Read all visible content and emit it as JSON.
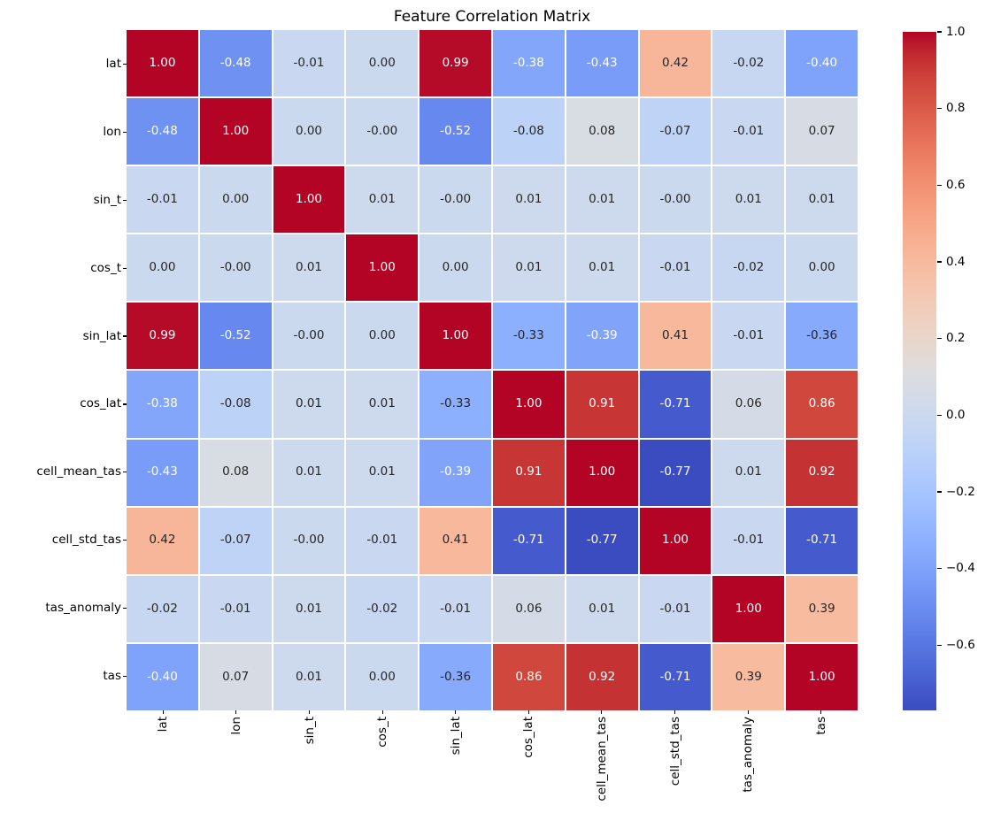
{
  "title": "Feature Correlation Matrix",
  "chart_data": {
    "type": "heatmap",
    "title": "Feature Correlation Matrix",
    "labels": [
      "lat",
      "lon",
      "sin_t",
      "cos_t",
      "sin_lat",
      "cos_lat",
      "cell_mean_tas",
      "cell_std_tas",
      "tas_anomaly",
      "tas"
    ],
    "matrix": [
      [
        "1.00",
        "-0.48",
        "-0.01",
        "0.00",
        "0.99",
        "-0.38",
        "-0.43",
        "0.42",
        "-0.02",
        "-0.40"
      ],
      [
        "-0.48",
        "1.00",
        "0.00",
        "-0.00",
        "-0.52",
        "-0.08",
        "0.08",
        "-0.07",
        "-0.01",
        "0.07"
      ],
      [
        "-0.01",
        "0.00",
        "1.00",
        "0.01",
        "-0.00",
        "0.01",
        "0.01",
        "-0.00",
        "0.01",
        "0.01"
      ],
      [
        "0.00",
        "-0.00",
        "0.01",
        "1.00",
        "0.00",
        "0.01",
        "0.01",
        "-0.01",
        "-0.02",
        "0.00"
      ],
      [
        "0.99",
        "-0.52",
        "-0.00",
        "0.00",
        "1.00",
        "-0.33",
        "-0.39",
        "0.41",
        "-0.01",
        "-0.36"
      ],
      [
        "-0.38",
        "-0.08",
        "0.01",
        "0.01",
        "-0.33",
        "1.00",
        "0.91",
        "-0.71",
        "0.06",
        "0.86"
      ],
      [
        "-0.43",
        "0.08",
        "0.01",
        "0.01",
        "-0.39",
        "0.91",
        "1.00",
        "-0.77",
        "0.01",
        "0.92"
      ],
      [
        "0.42",
        "-0.07",
        "-0.00",
        "-0.01",
        "0.41",
        "-0.71",
        "-0.77",
        "1.00",
        "-0.01",
        "-0.71"
      ],
      [
        "-0.02",
        "-0.01",
        "0.01",
        "-0.02",
        "-0.01",
        "0.06",
        "0.01",
        "-0.01",
        "1.00",
        "0.39"
      ],
      [
        "-0.40",
        "0.07",
        "0.01",
        "0.00",
        "-0.36",
        "0.86",
        "0.92",
        "-0.71",
        "0.39",
        "1.00"
      ]
    ],
    "colormap": "coolwarm",
    "vmin": -0.77,
    "vmax": 1.0,
    "colorbar_ticks": [
      {
        "label": "1.0",
        "value": 1.0
      },
      {
        "label": "0.8",
        "value": 0.8
      },
      {
        "label": "0.6",
        "value": 0.6
      },
      {
        "label": "0.4",
        "value": 0.4
      },
      {
        "label": "0.2",
        "value": 0.2
      },
      {
        "label": "0.0",
        "value": 0.0
      },
      {
        "label": "−0.2",
        "value": -0.2
      },
      {
        "label": "−0.4",
        "value": -0.4
      },
      {
        "label": "−0.6",
        "value": -0.6
      }
    ],
    "colors": {
      "background": "#ffffff",
      "gridline": "#ffffff",
      "annotation_dark": "#262626",
      "annotation_light": "#ffffff",
      "colormap_low": "#3b4cc0",
      "colormap_mid": "#dddddd",
      "colormap_high": "#b40426"
    },
    "legend_position": "right",
    "grid": false
  }
}
